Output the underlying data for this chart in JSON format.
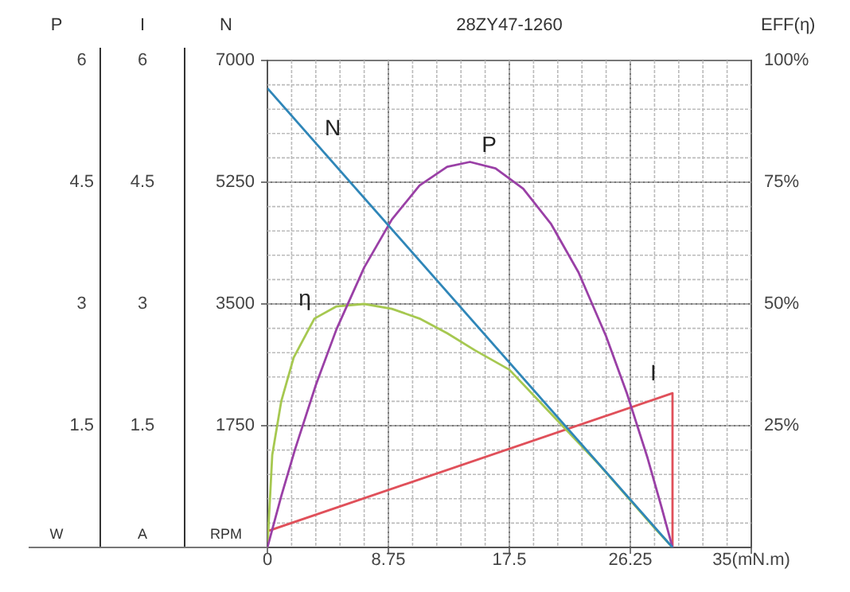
{
  "chart_data": {
    "type": "line",
    "title": "28ZY47-1260",
    "ylabel": "N",
    "y2label": "EFF(η)",
    "y3label": "P",
    "annotations": [
      "I",
      "1.5",
      "3",
      "4.5",
      "6",
      "W",
      "A",
      "RPM"
    ],
    "xlim": [
      0,
      35
    ],
    "xticks": [
      0,
      8.75,
      17.5,
      26.25,
      {
        "value": 35,
        "label": "35(mN.m)"
      }
    ],
    "ylim": [
      0,
      7000
    ],
    "yticks": [
      1750,
      3500,
      5250,
      7000
    ],
    "y2lim": [
      0,
      100
    ],
    "y2ticks": [
      {
        "value": 25,
        "label": "25%"
      },
      {
        "value": 50,
        "label": "50%"
      },
      {
        "value": 75,
        "label": "75%"
      },
      {
        "value": 100,
        "label": "100%"
      }
    ],
    "y3lim": [
      0,
      6
    ],
    "y3ticks": [
      1.5,
      3,
      4.5,
      6
    ],
    "grid": true,
    "legend": false,
    "marker": "none",
    "line_style": "solid",
    "series": [
      {
        "name": "N",
        "color": "#2f86b8",
        "x": [
          0,
          29.3
        ],
        "values": [
          6600,
          0
        ]
      },
      {
        "name": "P",
        "color": "#9a40a6",
        "axis": "y3",
        "x": [
          0,
          1,
          2,
          3.5,
          5,
          7,
          9,
          11,
          13,
          14.65,
          16.5,
          18.5,
          20.5,
          22.5,
          24.5,
          26,
          27.5,
          28.5,
          29.3
        ],
        "values": [
          0,
          0.63,
          1.21,
          2.0,
          2.69,
          3.45,
          4.04,
          4.46,
          4.69,
          4.75,
          4.67,
          4.42,
          3.99,
          3.39,
          2.6,
          1.9,
          1.1,
          0.5,
          0
        ]
      },
      {
        "name": "η",
        "color": "#a6c850",
        "axis": "y2",
        "x": [
          0,
          0.35,
          1,
          1.9,
          3.4,
          5,
          7,
          9,
          11,
          13,
          15,
          17.5,
          20,
          22,
          24,
          26,
          28,
          29.3
        ],
        "values": [
          0,
          19,
          30,
          39,
          47,
          49.5,
          50,
          49,
          47,
          44,
          40.5,
          36.5,
          29,
          23,
          17,
          10.5,
          4,
          0
        ]
      },
      {
        "name": "I",
        "color": "#e0505a",
        "axis": "y3",
        "x": [
          0,
          29.3,
          29.3
        ],
        "values": [
          0.2,
          1.9,
          0
        ]
      }
    ]
  }
}
